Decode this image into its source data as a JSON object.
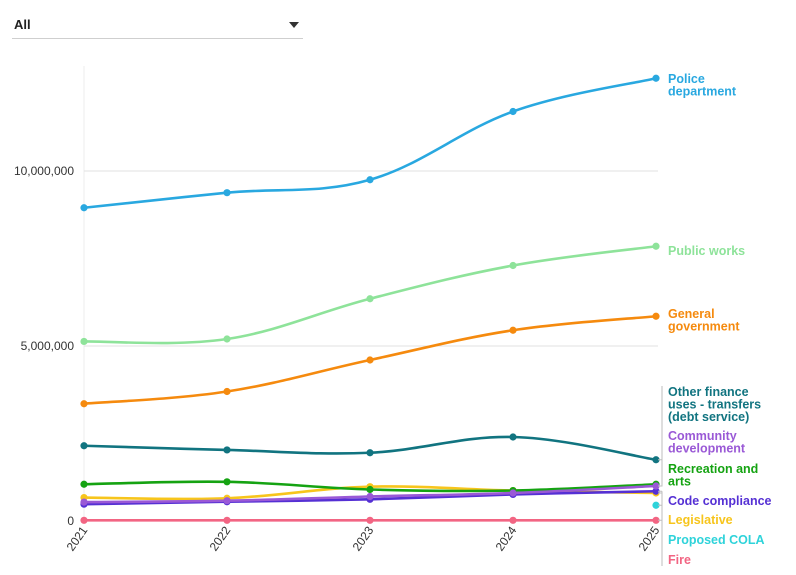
{
  "filter": {
    "selected": "All"
  },
  "chart_data": {
    "type": "line",
    "x": [
      "2021",
      "2022",
      "2023",
      "2024",
      "2025"
    ],
    "ylim": [
      0,
      13000000
    ],
    "yticks": [
      0,
      5000000,
      10000000
    ],
    "ytick_labels": [
      "0",
      "5,000,000",
      "10,000,000"
    ],
    "series": [
      {
        "name": "Police department",
        "label_lines": [
          "Police",
          "department"
        ],
        "color": "#29a8e0",
        "values": [
          8950000,
          9380000,
          9750000,
          11700000,
          12650000
        ]
      },
      {
        "name": "Public works",
        "label_lines": [
          "Public works"
        ],
        "color": "#8ee39a",
        "values": [
          5130000,
          5200000,
          6350000,
          7300000,
          7850000
        ]
      },
      {
        "name": "General government",
        "label_lines": [
          "General",
          "government"
        ],
        "color": "#f58a0e",
        "values": [
          3350000,
          3700000,
          4600000,
          5450000,
          5850000
        ]
      },
      {
        "name": "Other finance uses - transfers (debt service)",
        "label_lines": [
          "Other finance",
          "uses - transfers",
          "(debt service)"
        ],
        "color": "#117480",
        "values": [
          2150000,
          2030000,
          1950000,
          2400000,
          1750000
        ]
      },
      {
        "name": "Community development",
        "label_lines": [
          "Community",
          "development"
        ],
        "color": "#9a59d6",
        "values": [
          540000,
          580000,
          700000,
          800000,
          1000000
        ]
      },
      {
        "name": "Recreation and arts",
        "label_lines": [
          "Recreation and",
          "arts"
        ],
        "color": "#15a312",
        "values": [
          1050000,
          1120000,
          900000,
          870000,
          1050000
        ]
      },
      {
        "name": "Code compliance",
        "label_lines": [
          "Code compliance"
        ],
        "color": "#5530d4",
        "values": [
          480000,
          550000,
          620000,
          760000,
          850000
        ]
      },
      {
        "name": "Legislative",
        "label_lines": [
          "Legislative"
        ],
        "color": "#f7c51c",
        "values": [
          670000,
          650000,
          980000,
          870000,
          800000
        ]
      },
      {
        "name": "Proposed COLA",
        "label_lines": [
          "Proposed COLA"
        ],
        "color": "#2ed3da",
        "values": [
          null,
          null,
          null,
          null,
          450000
        ]
      },
      {
        "name": "Fire",
        "label_lines": [
          "Fire"
        ],
        "color": "#f26583",
        "values": [
          20000,
          20000,
          20000,
          20000,
          20000
        ]
      }
    ]
  }
}
